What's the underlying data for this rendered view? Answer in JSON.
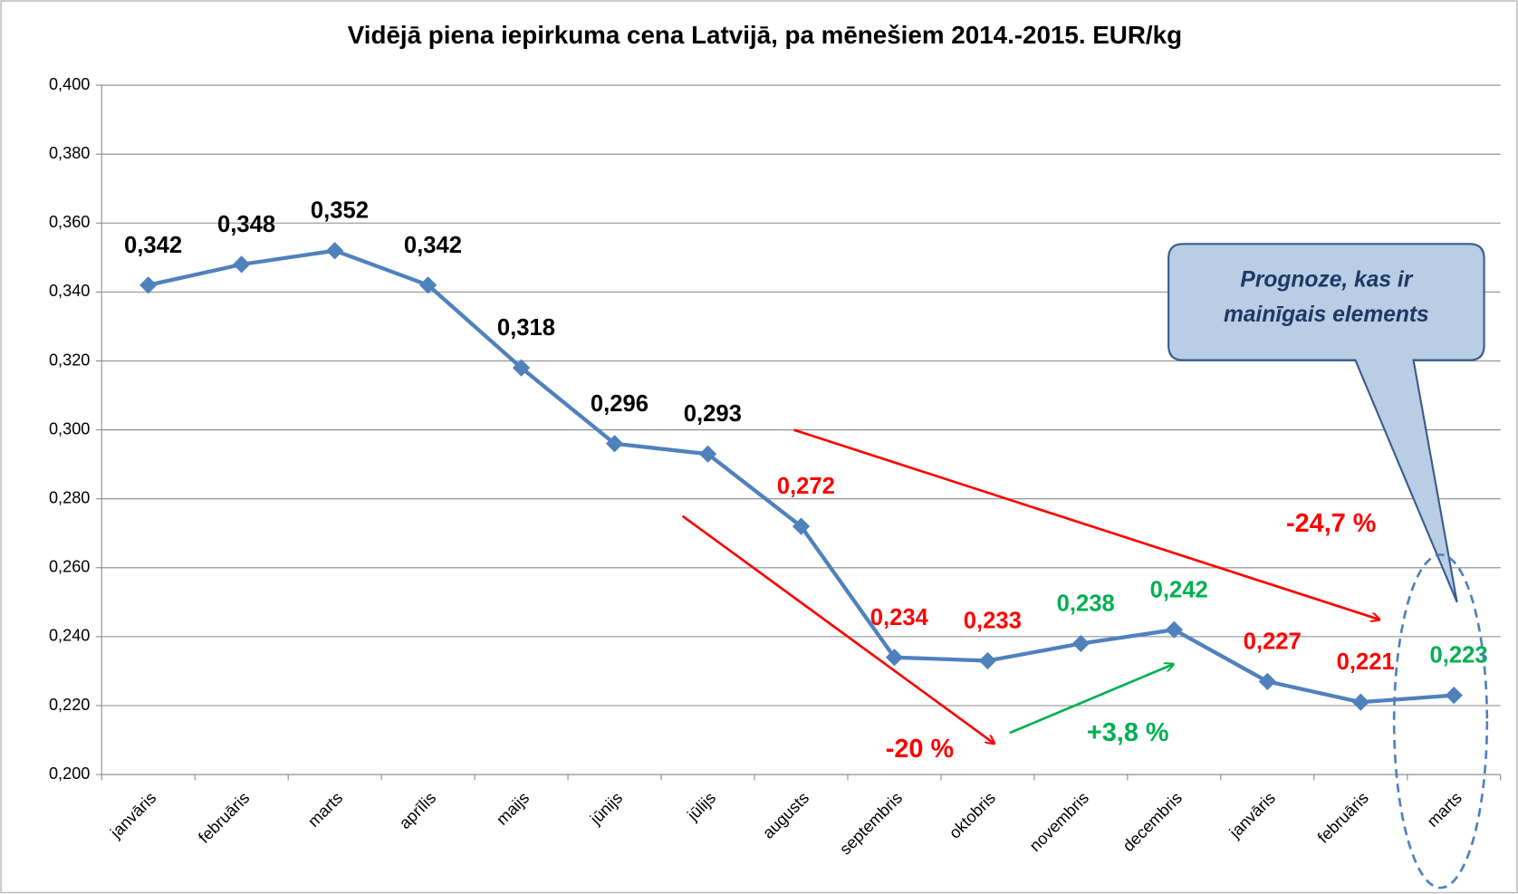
{
  "chart_data": {
    "type": "line",
    "title": "Vidējā piena iepirkuma cena Latvijā, pa mēnešiem 2014.-2015. EUR/kg",
    "categories": [
      "janvāris",
      "februāris",
      "marts",
      "aprīlis",
      "maijs",
      "jūnijs",
      "jūlijs",
      "augusts",
      "septembris",
      "oktobris",
      "novembris",
      "decembris",
      "janvāris",
      "februāris",
      "marts"
    ],
    "series": [
      {
        "color": "#4f81bd",
        "values": [
          0.342,
          0.348,
          0.352,
          0.342,
          0.318,
          0.296,
          0.293,
          0.272,
          0.234,
          0.233,
          0.238,
          0.242,
          0.227,
          0.221,
          0.223
        ],
        "value_labels": [
          "0,342",
          "0,348",
          "0,352",
          "0,342",
          "0,318",
          "0,296",
          "0,293",
          "0,272",
          "0,234",
          "0,233",
          "0,238",
          "0,242",
          "0,227",
          "0,221",
          "0,223"
        ],
        "value_label_colors": [
          "#000000",
          "#000000",
          "#000000",
          "#000000",
          "#000000",
          "#000000",
          "#000000",
          "#ff0000",
          "#ff0000",
          "#ff0000",
          "#00b050",
          "#00b050",
          "#ff0000",
          "#ff0000",
          "#00b050"
        ]
      }
    ],
    "ylim": [
      0.2,
      0.4
    ],
    "yticks": [
      {
        "value": 0.2,
        "label": "0,200"
      },
      {
        "value": 0.22,
        "label": "0,220"
      },
      {
        "value": 0.24,
        "label": "0,240"
      },
      {
        "value": 0.26,
        "label": "0,260"
      },
      {
        "value": 0.28,
        "label": "0,280"
      },
      {
        "value": 0.3,
        "label": "0,300"
      },
      {
        "value": 0.32,
        "label": "0,320"
      },
      {
        "value": 0.34,
        "label": "0,340"
      },
      {
        "value": 0.36,
        "label": "0,360"
      },
      {
        "value": 0.38,
        "label": "0,380"
      },
      {
        "value": 0.4,
        "label": "0,400"
      }
    ],
    "grid": true,
    "annotations": [
      "-24,7 %",
      "-20 %",
      "+3,8 %"
    ],
    "callout": [
      "Prognoze, kas  ir",
      "mainīgais elements"
    ]
  }
}
